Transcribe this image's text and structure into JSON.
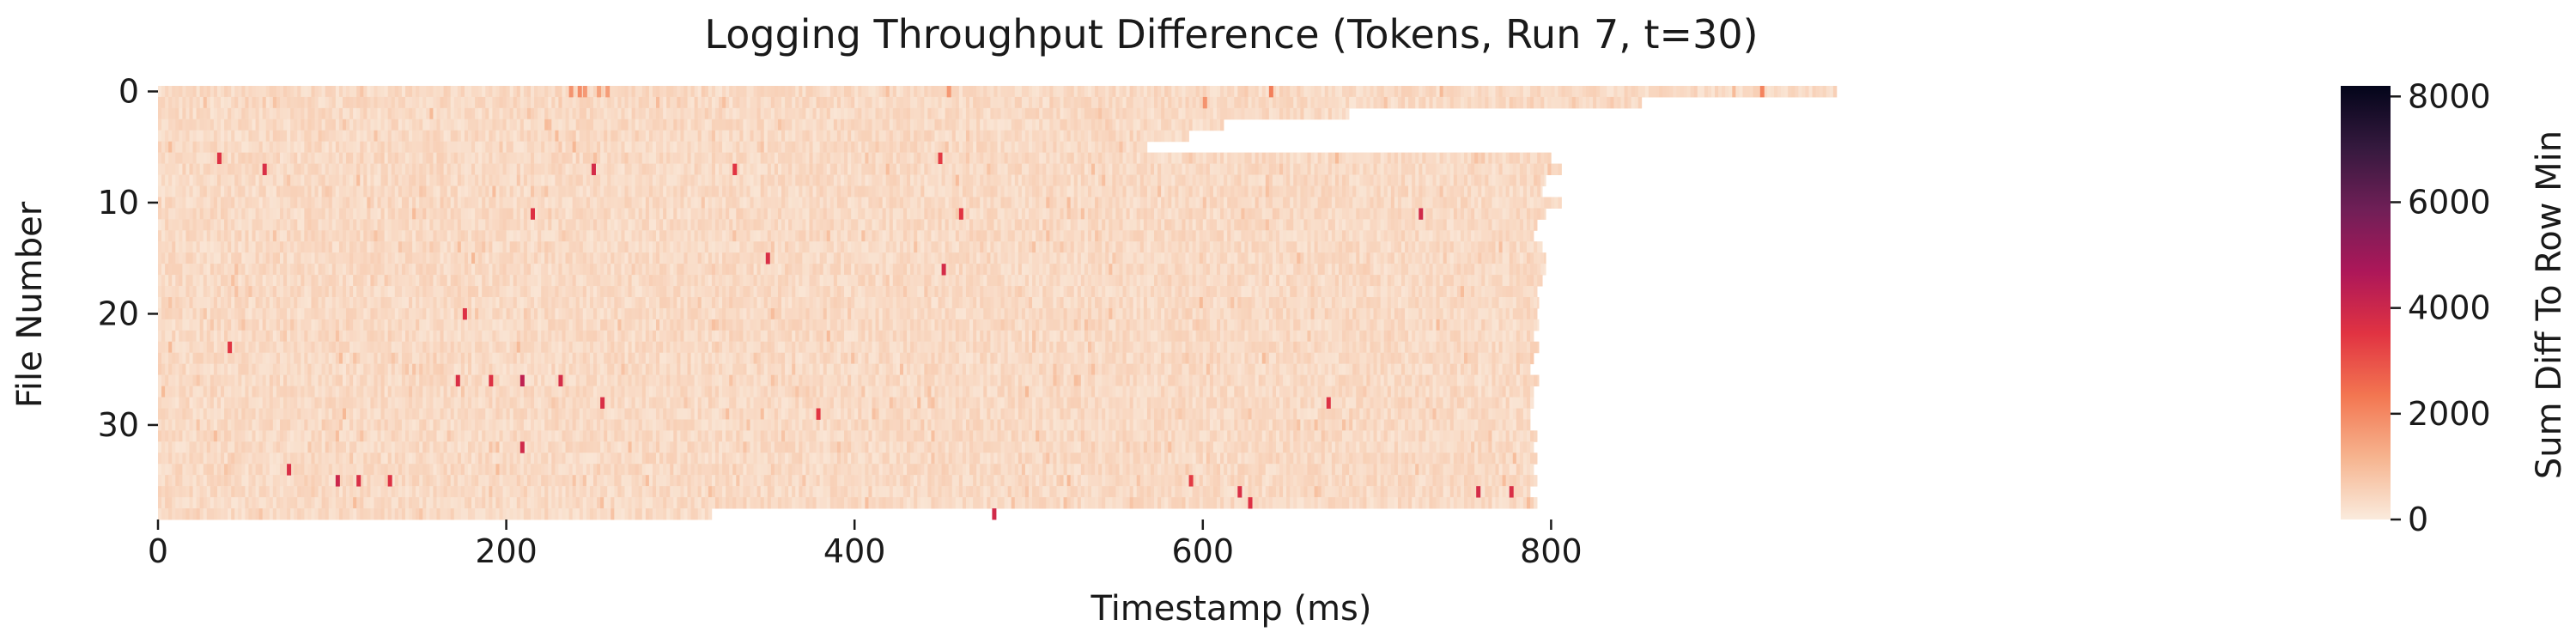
{
  "chart_data": {
    "type": "heatmap",
    "title": "Logging Throughput Difference (Tokens, Run 7, t=30)",
    "xlabel": "Timestamp (ms)",
    "ylabel": "File Number",
    "colorbar_label": "Sum Diff To Row Min",
    "xlim": [
      0,
      1000
    ],
    "ylim": [
      0,
      39
    ],
    "x_ticks": [
      0,
      200,
      400,
      600,
      800
    ],
    "y_ticks": [
      0,
      10,
      20,
      30
    ],
    "colorbar_range": [
      0,
      8200
    ],
    "colorbar_ticks": [
      0,
      2000,
      4000,
      6000,
      8000
    ],
    "colormap": "rocket (light = low, dark = high)",
    "colormap_stops": [
      "#faebdd",
      "#f6b48f",
      "#f37651",
      "#e13342",
      "#ad1759",
      "#701f57",
      "#35193e",
      "#03051a"
    ],
    "rows": 39,
    "typical_cell_value": 300,
    "row_end_timestamps": [
      964,
      852,
      684,
      612,
      592,
      568,
      800,
      806,
      797,
      795,
      806,
      797,
      792,
      790,
      795,
      797,
      797,
      795,
      792,
      793,
      792,
      793,
      790,
      793,
      790,
      788,
      793,
      790,
      790,
      788,
      788,
      792,
      790,
      792,
      790,
      792,
      788,
      792,
      318
    ],
    "high_value_cells": [
      {
        "file": 0,
        "t": 236,
        "v": 1800
      },
      {
        "file": 0,
        "t": 241,
        "v": 1900
      },
      {
        "file": 0,
        "t": 244,
        "v": 1700
      },
      {
        "file": 0,
        "t": 252,
        "v": 1500
      },
      {
        "file": 0,
        "t": 257,
        "v": 1600
      },
      {
        "file": 0,
        "t": 453,
        "v": 1700
      },
      {
        "file": 0,
        "t": 638,
        "v": 2200
      },
      {
        "file": 0,
        "t": 920,
        "v": 2100
      },
      {
        "file": 1,
        "t": 600,
        "v": 1800
      },
      {
        "file": 6,
        "t": 34,
        "v": 3600
      },
      {
        "file": 7,
        "t": 60,
        "v": 3700
      },
      {
        "file": 7,
        "t": 249,
        "v": 3800
      },
      {
        "file": 7,
        "t": 330,
        "v": 3500
      },
      {
        "file": 6,
        "t": 448,
        "v": 3400
      },
      {
        "file": 11,
        "t": 214,
        "v": 3600
      },
      {
        "file": 11,
        "t": 460,
        "v": 3500
      },
      {
        "file": 11,
        "t": 724,
        "v": 3900
      },
      {
        "file": 15,
        "t": 349,
        "v": 3700
      },
      {
        "file": 16,
        "t": 450,
        "v": 3800
      },
      {
        "file": 20,
        "t": 175,
        "v": 3600
      },
      {
        "file": 23,
        "t": 40,
        "v": 3500
      },
      {
        "file": 26,
        "t": 171,
        "v": 3700
      },
      {
        "file": 26,
        "t": 190,
        "v": 3600
      },
      {
        "file": 26,
        "t": 208,
        "v": 4300
      },
      {
        "file": 26,
        "t": 230,
        "v": 3800
      },
      {
        "file": 28,
        "t": 254,
        "v": 3700
      },
      {
        "file": 28,
        "t": 671,
        "v": 3600
      },
      {
        "file": 29,
        "t": 378,
        "v": 3500
      },
      {
        "file": 32,
        "t": 208,
        "v": 3900
      },
      {
        "file": 34,
        "t": 74,
        "v": 3700
      },
      {
        "file": 35,
        "t": 102,
        "v": 4000
      },
      {
        "file": 35,
        "t": 114,
        "v": 3700
      },
      {
        "file": 35,
        "t": 132,
        "v": 3600
      },
      {
        "file": 35,
        "t": 592,
        "v": 3400
      },
      {
        "file": 36,
        "t": 620,
        "v": 3700
      },
      {
        "file": 36,
        "t": 757,
        "v": 3800
      },
      {
        "file": 37,
        "t": 626,
        "v": 3600
      },
      {
        "file": 38,
        "t": 479,
        "v": 3900
      },
      {
        "file": 36,
        "t": 776,
        "v": 3700
      }
    ]
  }
}
